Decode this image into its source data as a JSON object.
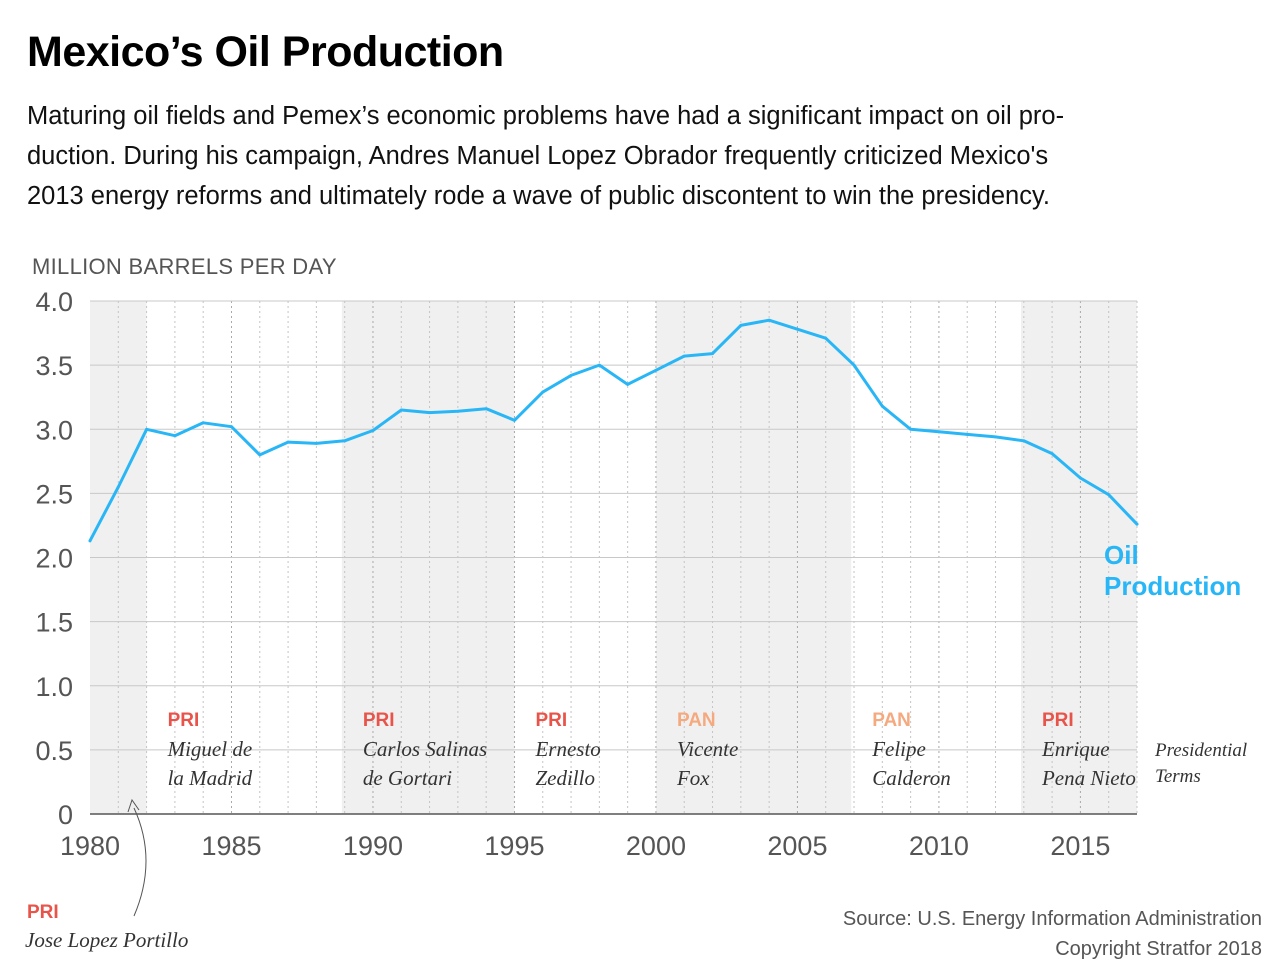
{
  "header": {
    "title": "Mexico’s Oil Production",
    "subtitle_lines": [
      "Maturing oil fields and Pemex’s economic problems have had a significant impact on oil pro-",
      "duction. During his campaign, Andres Manuel Lopez Obrador frequently criticized Mexico's",
      "2013 energy reforms and ultimately rode a wave of public discontent to win the presidency."
    ]
  },
  "footer": {
    "source": "Source: U.S. Energy Information Administration",
    "copyright": "Copyright Stratfor 2018"
  },
  "colors": {
    "line": "#29b6f6",
    "pri": "#e8534a",
    "pan": "#f5a97f",
    "shade": "#f0f0f0",
    "grid": "#c8c8c8"
  },
  "chart_data": {
    "type": "line",
    "title": "Mexico’s Oil Production",
    "ylabel": "MILLION BARRELS PER DAY",
    "xlim": [
      1980,
      2017
    ],
    "ylim": [
      0,
      4
    ],
    "x_ticks": [
      "1980",
      "1985",
      "1990",
      "1995",
      "2000",
      "2005",
      "2010",
      "2015"
    ],
    "y_ticks": [
      "0",
      "0.5",
      "1.0",
      "1.5",
      "2.0",
      "2.5",
      "3.0",
      "3.5",
      "4.0"
    ],
    "grid": true,
    "series": [
      {
        "name": "Oil Production",
        "label_lines": [
          "Oil",
          "Production"
        ],
        "x": [
          1980,
          1981,
          1982,
          1983,
          1984,
          1985,
          1986,
          1987,
          1988,
          1989,
          1990,
          1991,
          1992,
          1993,
          1994,
          1995,
          1996,
          1997,
          1998,
          1999,
          2000,
          2001,
          2002,
          2003,
          2004,
          2005,
          2006,
          2007,
          2008,
          2009,
          2010,
          2011,
          2012,
          2013,
          2014,
          2015,
          2016,
          2017
        ],
        "values": [
          2.13,
          2.55,
          3.0,
          2.95,
          3.05,
          3.02,
          2.8,
          2.9,
          2.89,
          2.91,
          2.99,
          3.15,
          3.13,
          3.14,
          3.16,
          3.07,
          3.29,
          3.42,
          3.5,
          3.35,
          3.46,
          3.57,
          3.59,
          3.81,
          3.85,
          3.78,
          3.71,
          3.5,
          3.18,
          3.0,
          2.98,
          2.96,
          2.94,
          2.91,
          2.81,
          2.62,
          2.49,
          2.26
        ]
      }
    ],
    "terms_label_lines": [
      "Presidential",
      "Terms"
    ],
    "presidential_terms": [
      {
        "party": "PRI",
        "name_lines": [
          "Jose Lopez Portillo"
        ],
        "start": 1976,
        "end": 1982,
        "shaded": true
      },
      {
        "party": "PRI",
        "name_lines": [
          "Miguel de",
          "la Madrid"
        ],
        "start": 1982,
        "end": 1988.9,
        "shaded": false
      },
      {
        "party": "PRI",
        "name_lines": [
          "Carlos Salinas",
          "de Gortari"
        ],
        "start": 1988.9,
        "end": 1995,
        "shaded": true
      },
      {
        "party": "PRI",
        "name_lines": [
          "Ernesto",
          "Zedillo"
        ],
        "start": 1995,
        "end": 2000,
        "shaded": false
      },
      {
        "party": "PAN",
        "name_lines": [
          "Vicente",
          "Fox"
        ],
        "start": 2000,
        "end": 2006.9,
        "shaded": true
      },
      {
        "party": "PAN",
        "name_lines": [
          "Felipe",
          "Calderon"
        ],
        "start": 2006.9,
        "end": 2012.9,
        "shaded": false
      },
      {
        "party": "PRI",
        "name_lines": [
          "Enrique",
          "Pena Nieto"
        ],
        "start": 2012.9,
        "end": 2018.9,
        "shaded": true
      }
    ]
  }
}
